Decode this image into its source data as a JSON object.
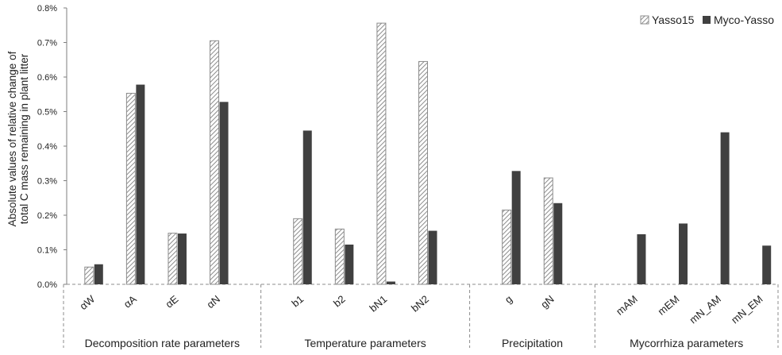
{
  "chart_data": {
    "type": "bar",
    "title": "",
    "ylabel_lines": [
      "Absolute values of relative change of",
      "total C mass remaining in plant litter"
    ],
    "ylim": [
      0,
      0.8
    ],
    "yticks": [
      "0.0%",
      "0.1%",
      "0.2%",
      "0.3%",
      "0.4%",
      "0.5%",
      "0.6%",
      "0.7%",
      "0.8%"
    ],
    "y_unit": "%",
    "grid": false,
    "legend_position": "top-right",
    "series": [
      {
        "name": "Yasso15",
        "pattern": "hatched",
        "color": "#8c8c8c",
        "values": [
          0.05,
          0.553,
          0.148,
          0.705,
          null,
          0.19,
          0.16,
          0.756,
          0.645,
          null,
          0.215,
          0.308,
          null,
          null,
          null,
          null,
          null
        ]
      },
      {
        "name": "Myco-Yasso",
        "pattern": "solid",
        "color": "#404040",
        "values": [
          0.058,
          0.578,
          0.147,
          0.528,
          null,
          0.445,
          0.115,
          0.008,
          0.155,
          null,
          0.328,
          0.235,
          null,
          0.145,
          0.176,
          0.44,
          0.112
        ]
      }
    ],
    "categories": [
      "αW",
      "αA",
      "αE",
      "αN",
      "",
      "b1",
      "b2",
      "bN1",
      "bN2",
      "",
      "g",
      "gN",
      "",
      "mAM",
      "mEM",
      "mN_AM",
      "mN_EM"
    ],
    "groups": [
      {
        "label": "Decomposition rate parameters",
        "categories": [
          "αW",
          "αA",
          "αE",
          "αN"
        ]
      },
      {
        "label": "Temperature parameters",
        "categories": [
          "b1",
          "b2",
          "bN1",
          "bN2"
        ]
      },
      {
        "label": "Precipitation",
        "categories": [
          "g",
          "gN"
        ]
      },
      {
        "label": "Mycorrhiza parameters",
        "categories": [
          "mAM",
          "mEM",
          "mN_AM",
          "mN_EM"
        ]
      }
    ]
  }
}
